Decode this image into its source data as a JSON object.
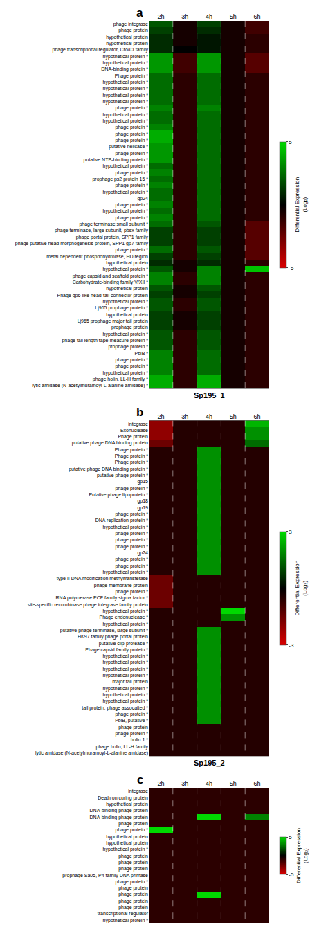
{
  "chart_data": [
    {
      "type": "heatmap",
      "label": "a",
      "title": "Sp195_1",
      "x": [
        "2h",
        "3h",
        "4h",
        "5h",
        "6h"
      ],
      "y": [
        "phage integrase",
        "phage protein",
        "hypothetical protein",
        "hypothetical protein",
        "phage transcriptional regulator, Cro/CI family",
        "hypothetical protein *",
        "hypothetical protein *",
        "DNA-binding protein *",
        "Phage protein *",
        "hypothetical protein *",
        "hypothetical protein *",
        "hypothetical protein *",
        "hypothetical protein *",
        "phage protein *",
        "hypothetical protein *",
        "hypothetical protein *",
        "phage protein *",
        "phage protein *",
        "phage protein *",
        "putative helicase *",
        "phage protein *",
        "putative NTP-binding protein *",
        "hypothetical protein *",
        "phage protein *",
        "prophage ps2 protein 15 *",
        "phage protein *",
        "hypothetical protein *",
        "gp24",
        "phage protein *",
        "hypothetical protein *",
        "phage protein *",
        "phage terminase small subunit *",
        "phage terminase, large subunit, pbsx family",
        "phage portal protein, SPP1 family",
        "phage putative head morphogenesis protein, SPP1 gp7 family",
        "phage protein *",
        "metal dependent phosphohydrolase, HD region",
        "hypothetical protein",
        "hypothetical protein *",
        "phage capsid and scaffold protein *",
        "Carbohydrate-binding family V/XII *",
        "hypothetical protein",
        "Phage gp6-like head-tail connector protein",
        "hypothetical protein *",
        "Lj965 prophage protein *",
        "hypothetical protein",
        "Lj965 prophage major tail protein",
        "prophage protein",
        "hypothetical protein *",
        "phage tail length tape-measure protein *",
        "prophage protein *",
        "PblB *",
        "phage protein *",
        "phage protein *",
        "hypothetical protein *",
        "phage holin, LL-H family *",
        "lytic amidase (N-acetylmuramoyl-L-alanine amidase) *"
      ],
      "values": [
        [
          2.0,
          -0.5,
          1.5,
          -0.5,
          -1.5
        ],
        [
          1.5,
          -0.5,
          1.0,
          -0.5,
          -1.5
        ],
        [
          1.0,
          -0.5,
          0.5,
          -0.5,
          -1.0
        ],
        [
          1.0,
          -0.5,
          0.5,
          -0.5,
          -1.0
        ],
        [
          1.0,
          0.0,
          0.5,
          -0.5,
          -1.0
        ],
        [
          3.5,
          -1.5,
          3.5,
          -0.5,
          -2.0
        ],
        [
          3.5,
          -1.5,
          3.5,
          -0.5,
          -2.0
        ],
        [
          3.5,
          -1.5,
          3.5,
          -0.5,
          -2.0
        ],
        [
          2.5,
          -1.0,
          2.5,
          -0.5,
          -1.0
        ],
        [
          2.5,
          -1.0,
          2.5,
          -0.5,
          -1.0
        ],
        [
          2.5,
          -1.0,
          2.5,
          -0.5,
          -1.0
        ],
        [
          2.5,
          -1.0,
          2.5,
          -0.5,
          -1.0
        ],
        [
          2.5,
          -1.0,
          2.5,
          -0.5,
          -1.0
        ],
        [
          3.0,
          -1.0,
          3.0,
          -0.5,
          -1.0
        ],
        [
          2.5,
          -1.0,
          2.5,
          -0.5,
          -1.0
        ],
        [
          2.5,
          -1.0,
          2.5,
          -0.5,
          -1.0
        ],
        [
          3.0,
          -1.0,
          2.5,
          -0.5,
          -1.0
        ],
        [
          4.0,
          -1.0,
          2.5,
          -0.5,
          -1.0
        ],
        [
          4.0,
          -1.0,
          2.5,
          -0.5,
          -1.0
        ],
        [
          3.5,
          -1.0,
          2.5,
          -0.5,
          -1.0
        ],
        [
          3.5,
          -1.0,
          2.5,
          -0.5,
          -1.0
        ],
        [
          3.5,
          -1.0,
          2.5,
          -0.5,
          -1.0
        ],
        [
          2.5,
          -1.0,
          2.5,
          -0.5,
          -1.0
        ],
        [
          3.0,
          -1.0,
          2.5,
          -0.5,
          -1.0
        ],
        [
          2.5,
          -1.0,
          2.5,
          -0.5,
          -1.0
        ],
        [
          3.0,
          -1.0,
          2.5,
          -0.5,
          -1.0
        ],
        [
          2.5,
          -1.0,
          2.5,
          -0.5,
          -1.0
        ],
        [
          2.5,
          -1.0,
          2.5,
          -0.5,
          -1.0
        ],
        [
          3.0,
          -1.0,
          2.5,
          -0.5,
          -1.0
        ],
        [
          2.5,
          -1.0,
          2.5,
          -0.5,
          -1.0
        ],
        [
          3.0,
          -1.0,
          2.5,
          -0.5,
          -1.0
        ],
        [
          2.5,
          -1.0,
          2.0,
          -0.5,
          -2.0
        ],
        [
          1.5,
          -1.0,
          1.5,
          -0.5,
          -2.0
        ],
        [
          1.5,
          -1.0,
          1.5,
          -0.5,
          -2.0
        ],
        [
          1.5,
          -1.0,
          1.5,
          -0.5,
          -2.0
        ],
        [
          2.5,
          -1.0,
          2.0,
          -0.5,
          -2.0
        ],
        [
          1.5,
          -1.0,
          1.5,
          -0.5,
          -2.0
        ],
        [
          1.0,
          -0.5,
          1.0,
          -0.5,
          -1.0
        ],
        [
          2.0,
          -0.5,
          3.0,
          -0.5,
          4.5
        ],
        [
          3.0,
          -1.0,
          3.0,
          -0.5,
          -1.0
        ],
        [
          3.0,
          -1.0,
          3.0,
          -0.5,
          -1.0
        ],
        [
          2.0,
          -0.5,
          2.0,
          -0.5,
          -1.0
        ],
        [
          1.5,
          -0.5,
          1.5,
          -0.5,
          -1.0
        ],
        [
          2.0,
          -1.0,
          2.0,
          -0.5,
          -1.0
        ],
        [
          2.0,
          -1.0,
          2.0,
          -0.5,
          -1.0
        ],
        [
          1.5,
          -0.5,
          1.5,
          -0.5,
          -1.0
        ],
        [
          1.5,
          -0.5,
          1.5,
          -0.5,
          -1.0
        ],
        [
          1.5,
          -0.5,
          1.5,
          -0.5,
          -1.0
        ],
        [
          2.0,
          -1.0,
          2.0,
          -0.5,
          -1.0
        ],
        [
          2.0,
          -1.0,
          2.0,
          -0.5,
          -1.0
        ],
        [
          2.0,
          -1.0,
          2.0,
          -0.5,
          -1.0
        ],
        [
          3.0,
          -1.0,
          2.5,
          -0.5,
          -1.0
        ],
        [
          3.0,
          -1.0,
          2.5,
          -0.5,
          -1.0
        ],
        [
          3.0,
          -1.0,
          2.5,
          -0.5,
          -1.0
        ],
        [
          3.0,
          -1.0,
          2.5,
          -0.5,
          -1.0
        ],
        [
          4.0,
          -1.0,
          4.0,
          -0.5,
          -1.0
        ],
        [
          4.0,
          -1.0,
          4.0,
          -0.5,
          -1.0
        ]
      ],
      "zlim": [
        -5,
        5
      ],
      "colorbar_ticks": [
        5,
        -5
      ],
      "colorbar_title": "Differential Expression\n(Log₂)",
      "colorscale": [
        [
          0.0,
          "#d90000"
        ],
        [
          0.35,
          "#400000"
        ],
        [
          0.5,
          "#000000"
        ],
        [
          0.65,
          "#004000"
        ],
        [
          1.0,
          "#00d900"
        ]
      ]
    },
    {
      "type": "heatmap",
      "label": "b",
      "title": "Sp195_2",
      "x": [
        "2h",
        "3h",
        "4h",
        "5h",
        "6h"
      ],
      "y": [
        "integrase",
        "Exonuclease",
        "Phage protein",
        "putative phage DNA binding protein",
        "Phage protein *",
        "Phage protein *",
        "Phage protein *",
        "putative phage DNA binding protein *",
        "putative phage protein *",
        "gp15",
        "phage protein *",
        "Putative phage lipoprotein *",
        "gp18",
        "gp19",
        "phage protein *",
        "DNA replication protein *",
        "hypothetical protein *",
        "phage protein *",
        "phage protein *",
        "phage protein *",
        "gp24",
        "phage protein *",
        "phage protein *",
        "hypothetical protein *",
        "type II DNA modification methyltransferase",
        "phage membrane protein",
        "phage protein *",
        "RNA polymerase ECF family sigma factor *",
        "site-specific recombinase phage integrase family protein",
        "hypothetical protein *",
        "Phage endonuclease *",
        "hypothetical protein *",
        "putative phage terminase, large subunit *",
        "HK97 family phage portal protein",
        "putative clip-protease *",
        "Phage capsid family protein *",
        "hypothetical protein *",
        "hypothetical protein *",
        "hypothetical protein *",
        "hypothetical protein *",
        "major tail protein",
        "hypothetical protein *",
        "hypothetical protein *",
        "hypothetical protein *",
        "tail protein, phage assocaited *",
        "phage protein *",
        "PblB, putative *",
        "phage protein",
        "phage protein *",
        "holin 1 *",
        "phage holin, LL-H family",
        "lytic amidase (N-acetylmuramoyl-L-alanine amidase)"
      ],
      "values": [
        [
          -2.0,
          -0.5,
          -0.5,
          -0.5,
          2.5
        ],
        [
          -2.0,
          -0.5,
          -0.5,
          -0.5,
          2.0
        ],
        [
          -2.0,
          -0.5,
          -0.5,
          -0.5,
          2.0
        ],
        [
          -1.5,
          -0.5,
          -0.5,
          -0.5,
          1.5
        ],
        [
          -0.5,
          -0.5,
          2.0,
          -0.5,
          -0.5
        ],
        [
          -0.5,
          -0.5,
          2.0,
          -0.5,
          -0.5
        ],
        [
          -0.5,
          -0.5,
          2.0,
          -0.5,
          -0.5
        ],
        [
          -0.5,
          -0.5,
          2.0,
          -0.5,
          -0.5
        ],
        [
          -0.5,
          -0.5,
          2.0,
          -0.5,
          -0.5
        ],
        [
          -0.5,
          -0.5,
          2.0,
          -0.5,
          -0.5
        ],
        [
          -0.5,
          -0.5,
          2.0,
          -0.5,
          -0.5
        ],
        [
          -0.5,
          -0.5,
          2.0,
          -0.5,
          -0.5
        ],
        [
          -0.5,
          -0.5,
          2.0,
          -0.5,
          -0.5
        ],
        [
          -0.5,
          -0.5,
          2.0,
          -0.5,
          -0.5
        ],
        [
          -0.5,
          -0.5,
          2.0,
          -0.5,
          -0.5
        ],
        [
          -0.5,
          -0.5,
          2.0,
          -0.5,
          -0.5
        ],
        [
          -0.5,
          -0.5,
          2.0,
          -0.5,
          -0.5
        ],
        [
          -0.5,
          -0.5,
          2.0,
          -0.5,
          -0.5
        ],
        [
          -0.5,
          -0.5,
          2.0,
          -0.5,
          -0.5
        ],
        [
          -0.5,
          -0.5,
          2.0,
          -0.5,
          -0.5
        ],
        [
          -0.5,
          -0.5,
          2.0,
          -0.5,
          -0.5
        ],
        [
          -0.5,
          -0.5,
          2.0,
          -0.5,
          -0.5
        ],
        [
          -0.5,
          -0.5,
          2.0,
          -0.5,
          -0.5
        ],
        [
          -0.5,
          -0.5,
          2.0,
          -0.5,
          -0.5
        ],
        [
          -1.5,
          -0.5,
          -0.5,
          -0.5,
          -0.5
        ],
        [
          -1.5,
          -0.5,
          -0.5,
          -0.5,
          -0.5
        ],
        [
          -1.5,
          -0.5,
          -0.5,
          -0.5,
          -0.5
        ],
        [
          -1.5,
          -0.5,
          -0.5,
          -0.5,
          -0.5
        ],
        [
          -1.5,
          -0.5,
          -0.5,
          -0.5,
          -0.5
        ],
        [
          -0.5,
          -0.5,
          -0.5,
          3.0,
          -0.5
        ],
        [
          -0.5,
          -0.5,
          -0.5,
          2.0,
          -0.5
        ],
        [
          -0.5,
          -0.5,
          -0.5,
          -0.5,
          -0.5
        ],
        [
          -0.5,
          -0.5,
          2.0,
          -0.5,
          -0.5
        ],
        [
          -0.5,
          -0.5,
          2.0,
          -0.5,
          -0.5
        ],
        [
          -0.5,
          -0.5,
          2.0,
          -0.5,
          -0.5
        ],
        [
          -0.5,
          -0.5,
          2.0,
          -0.5,
          -0.5
        ],
        [
          -0.5,
          -0.5,
          2.0,
          -0.5,
          -0.5
        ],
        [
          -0.5,
          -0.5,
          2.0,
          -0.5,
          -0.5
        ],
        [
          -0.5,
          -0.5,
          2.0,
          -0.5,
          -0.5
        ],
        [
          -0.5,
          -0.5,
          2.0,
          -0.5,
          -0.5
        ],
        [
          -0.5,
          -0.5,
          2.0,
          -0.5,
          -0.5
        ],
        [
          -0.5,
          -0.5,
          2.0,
          -0.5,
          -0.5
        ],
        [
          -0.5,
          -0.5,
          2.0,
          -0.5,
          -0.5
        ],
        [
          -0.5,
          -0.5,
          2.0,
          -0.5,
          -0.5
        ],
        [
          -0.5,
          -0.5,
          2.0,
          -0.5,
          -0.5
        ],
        [
          -0.5,
          -0.5,
          2.0,
          -0.5,
          -0.5
        ],
        [
          -0.5,
          -0.5,
          2.0,
          -0.5,
          -0.5
        ],
        [
          -0.5,
          -0.5,
          -0.5,
          -0.5,
          -0.5
        ],
        [
          -0.5,
          -0.5,
          -0.5,
          -0.5,
          -0.5
        ],
        [
          -0.5,
          -0.5,
          -0.5,
          -0.5,
          -0.5
        ],
        [
          -0.5,
          -0.5,
          -0.5,
          -0.5,
          -0.5
        ],
        [
          -0.5,
          -0.5,
          -0.5,
          -0.5,
          -0.5
        ]
      ],
      "zlim": [
        -3,
        3
      ],
      "colorbar_ticks": [
        3,
        -3
      ],
      "colorbar_title": "Differential Expression\n(Log₂)",
      "colorscale": [
        [
          0.0,
          "#d90000"
        ],
        [
          0.35,
          "#400000"
        ],
        [
          0.5,
          "#000000"
        ],
        [
          0.65,
          "#004000"
        ],
        [
          1.0,
          "#00d900"
        ]
      ]
    },
    {
      "type": "heatmap",
      "label": "c",
      "x": [
        "2h",
        "3h",
        "4h",
        "5h",
        "6h"
      ],
      "y": [
        "integrase",
        "Death on curing protein",
        "hypothetical protein",
        "DNA-binding phage protein",
        "DNA-binding phage protein",
        "phage protein",
        "phage protein *",
        "hypothetical protein",
        "hypothetical protein",
        "hypothetical protein *",
        "phage protein",
        "phage protein",
        "phage protein",
        "prophage Sa05, P4 family DNA primase",
        "phage protein *",
        "phage protein",
        "phage protein",
        "phage protein",
        "phage protein",
        "transcriptional regulator",
        "hypothetical protein *"
      ],
      "values": [
        [
          -1.0,
          -1.0,
          -1.0,
          -1.0,
          -1.0
        ],
        [
          -1.0,
          -1.0,
          -1.0,
          -1.0,
          -1.0
        ],
        [
          -1.0,
          -1.0,
          -1.0,
          -1.0,
          -1.0
        ],
        [
          -1.0,
          -1.0,
          -1.0,
          -1.0,
          -1.0
        ],
        [
          -1.0,
          -1.0,
          5.0,
          -1.0,
          3.0
        ],
        [
          -1.0,
          -1.0,
          -1.0,
          -1.0,
          -1.0
        ],
        [
          5.0,
          -1.0,
          -1.0,
          -1.0,
          -1.0
        ],
        [
          -1.0,
          -1.0,
          -1.0,
          -1.0,
          -1.0
        ],
        [
          -1.0,
          -1.0,
          -1.0,
          -1.0,
          -1.0
        ],
        [
          -1.0,
          -1.0,
          -1.0,
          -1.0,
          -1.0
        ],
        [
          -1.0,
          -1.0,
          -1.0,
          -1.0,
          -1.0
        ],
        [
          -1.0,
          -1.0,
          -1.0,
          -1.0,
          -1.0
        ],
        [
          -1.0,
          -1.0,
          -1.0,
          -1.0,
          -1.0
        ],
        [
          -1.0,
          -1.0,
          -1.0,
          -1.0,
          -1.0
        ],
        [
          -1.0,
          -1.0,
          -1.0,
          -1.0,
          -1.0
        ],
        [
          -1.0,
          -1.0,
          -1.0,
          -1.0,
          -1.0
        ],
        [
          -1.0,
          -1.0,
          5.0,
          -1.0,
          -1.0
        ],
        [
          -1.0,
          -1.0,
          -1.0,
          -1.0,
          -1.0
        ],
        [
          -1.0,
          -1.0,
          -1.0,
          -1.0,
          -1.0
        ],
        [
          -1.0,
          -1.0,
          -1.0,
          -1.0,
          -1.0
        ],
        [
          -1.0,
          -1.0,
          -1.0,
          -1.0,
          -1.0
        ]
      ],
      "zlim": [
        -5,
        5
      ],
      "colorbar_ticks": [
        5,
        -5
      ],
      "colorbar_title": "Differential Expression\n(Log₂)",
      "colorscale": [
        [
          0.0,
          "#d90000"
        ],
        [
          0.35,
          "#400000"
        ],
        [
          0.5,
          "#000000"
        ],
        [
          0.65,
          "#004000"
        ],
        [
          1.0,
          "#00d900"
        ]
      ]
    }
  ]
}
